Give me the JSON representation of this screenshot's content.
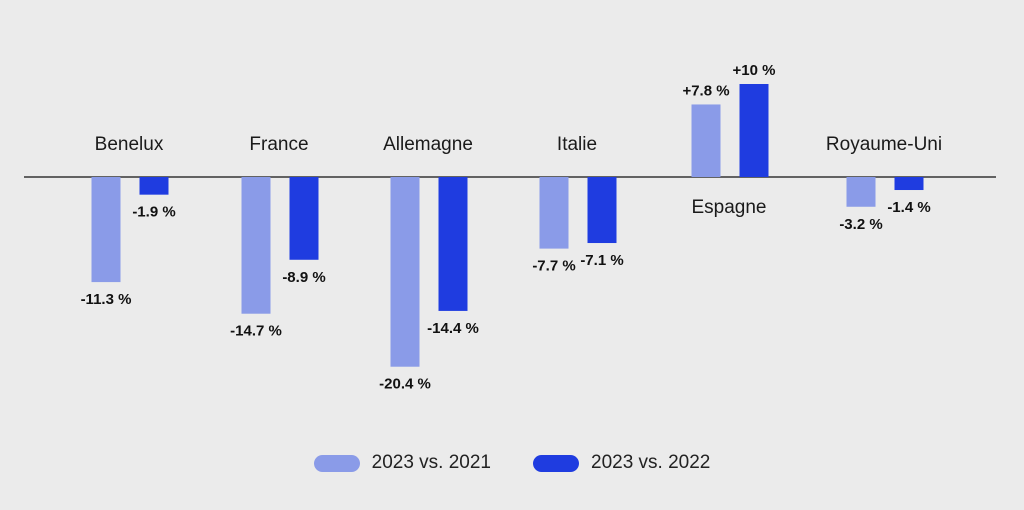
{
  "chart_data": {
    "type": "bar",
    "categories": [
      "Benelux",
      "France",
      "Allemagne",
      "Italie",
      "Espagne",
      "Royaume-Uni"
    ],
    "series": [
      {
        "name": "2023 vs. 2021",
        "color": "#8a9be8",
        "values": [
          -11.3,
          -14.7,
          -20.4,
          -7.7,
          7.8,
          -3.2
        ],
        "labels": [
          "-11.3 %",
          "-14.7 %",
          "-20.4 %",
          "-7.7 %",
          "+7.8 %",
          "-3.2 %"
        ]
      },
      {
        "name": "2023 vs. 2022",
        "color": "#1f3ce0",
        "values": [
          -1.9,
          -8.9,
          -14.4,
          -7.1,
          10,
          -1.4
        ],
        "labels": [
          "-1.9 %",
          "-8.9 %",
          "-14.4 %",
          "-7.1 %",
          "+10 %",
          "-1.4 %"
        ]
      }
    ],
    "title": "",
    "xlabel": "",
    "ylabel": "",
    "ylim": [
      -20.4,
      10
    ],
    "grid": false,
    "legend_position": "bottom-center"
  }
}
